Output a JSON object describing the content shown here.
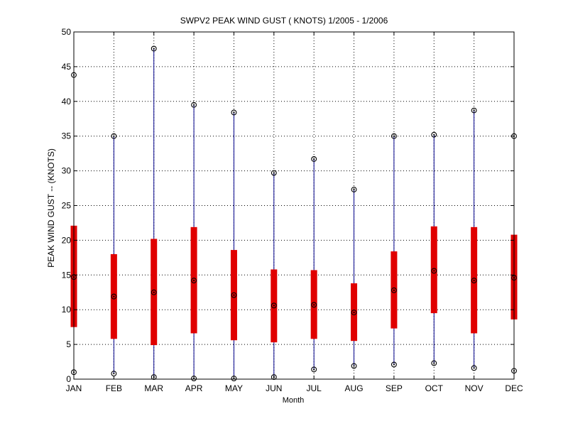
{
  "chart_data": {
    "type": "box",
    "title": "SWPV2  PEAK WIND GUST ( KNOTS) 1/2005 - 1/2006",
    "xlabel": "Month",
    "ylabel": "PEAK WIND GUST -- (KNOTS)",
    "ylim": [
      0,
      50
    ],
    "yticks": [
      0,
      5,
      10,
      15,
      20,
      25,
      30,
      35,
      40,
      45,
      50
    ],
    "grid": true,
    "categories": [
      "JAN",
      "FEB",
      "MAR",
      "APR",
      "MAY",
      "JUN",
      "JUL",
      "AUG",
      "SEP",
      "OCT",
      "NOV",
      "DEC"
    ],
    "series": [
      {
        "min": [
          1.0,
          0.8,
          0.3,
          0.1,
          0.1,
          0.3,
          1.4,
          1.9,
          2.1,
          2.3,
          1.6,
          1.2
        ],
        "q1": [
          7.5,
          5.8,
          4.9,
          6.6,
          5.6,
          5.3,
          5.8,
          5.5,
          7.3,
          9.5,
          6.6,
          8.6
        ],
        "median": [
          14.7,
          11.9,
          12.5,
          14.2,
          12.1,
          10.6,
          10.7,
          9.6,
          12.8,
          15.6,
          14.2,
          14.6
        ],
        "q3": [
          22.1,
          18.0,
          20.2,
          21.9,
          18.6,
          15.8,
          15.7,
          13.8,
          18.4,
          22.0,
          21.9,
          20.8
        ],
        "max": [
          43.8,
          35.0,
          47.6,
          39.5,
          38.4,
          29.7,
          31.7,
          27.3,
          35.0,
          35.2,
          38.7,
          35.0
        ]
      }
    ],
    "colors": {
      "whisker": "#00008b",
      "box": "#e00000",
      "marker": "#000000",
      "grid": "#000000",
      "axis": "#000000"
    }
  }
}
